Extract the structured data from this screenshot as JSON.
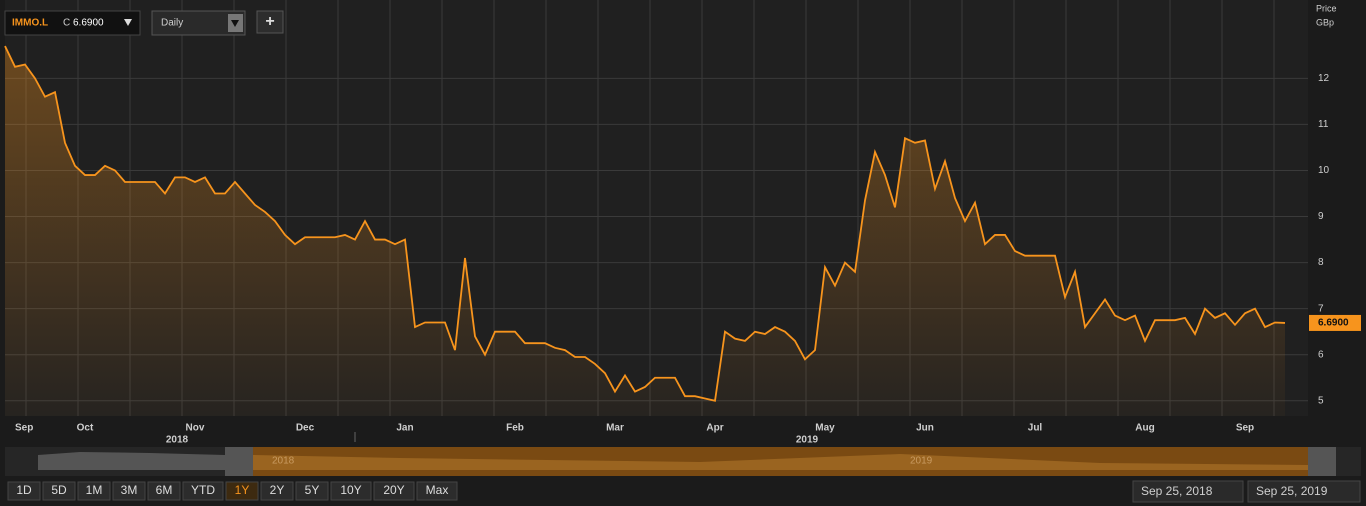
{
  "toolbar": {
    "symbol": "IMMO.L",
    "close_prefix": "C",
    "close": "6.6900",
    "interval": "Daily",
    "add": "+"
  },
  "chart_data": {
    "type": "line",
    "y_axis_label": [
      "Price",
      "GBp"
    ],
    "categories": [
      null,
      "Sep",
      null,
      null,
      null,
      null,
      null,
      null,
      "Oct",
      null,
      null,
      null,
      null,
      null,
      null,
      null,
      null,
      null,
      null,
      "Nov",
      null,
      null,
      null,
      null,
      null,
      null,
      null,
      null,
      null,
      null,
      "Dec",
      null,
      null,
      null,
      null,
      null,
      null,
      null,
      null,
      null,
      "Jan",
      null,
      null,
      null,
      null,
      null,
      null,
      null,
      null,
      null,
      null,
      "Feb",
      null,
      null,
      null,
      null,
      null,
      null,
      null,
      null,
      null,
      "Mar",
      null,
      null,
      null,
      null,
      null,
      null,
      null,
      null,
      null,
      "Apr",
      null,
      null,
      null,
      null,
      null,
      null,
      null,
      null,
      null,
      null,
      "May",
      null,
      null,
      null,
      null,
      null,
      null,
      null,
      null,
      null,
      "Jun",
      null,
      null,
      null,
      null,
      null,
      null,
      null,
      null,
      null,
      null,
      "Jul",
      null,
      null,
      null,
      null,
      null,
      null,
      null,
      null,
      null,
      null,
      "Aug",
      null,
      null,
      null,
      null,
      null,
      null,
      null,
      null,
      null,
      "Sep",
      null,
      null,
      null,
      null
    ],
    "year_labels": [
      "2018",
      "2019"
    ],
    "series": [
      {
        "name": "IMMO.L",
        "color": "#f7941d",
        "values": [
          12.7,
          12.25,
          12.3,
          12.0,
          11.6,
          11.7,
          10.6,
          10.1,
          9.9,
          9.9,
          10.1,
          10.0,
          9.75,
          9.75,
          9.75,
          9.75,
          9.5,
          9.85,
          9.85,
          9.75,
          9.85,
          9.5,
          9.5,
          9.75,
          9.5,
          9.25,
          9.1,
          8.9,
          8.6,
          8.4,
          8.55,
          8.55,
          8.55,
          8.55,
          8.6,
          8.5,
          8.9,
          8.5,
          8.5,
          8.4,
          8.5,
          6.6,
          6.7,
          6.7,
          6.7,
          6.1,
          8.1,
          6.4,
          6.0,
          6.5,
          6.5,
          6.5,
          6.25,
          6.25,
          6.25,
          6.15,
          6.1,
          5.95,
          5.95,
          5.8,
          5.6,
          5.2,
          5.55,
          5.2,
          5.3,
          5.5,
          5.5,
          5.5,
          5.1,
          5.1,
          5.05,
          5.0,
          6.5,
          6.35,
          6.3,
          6.5,
          6.45,
          6.6,
          6.5,
          6.3,
          5.9,
          6.1,
          7.9,
          7.5,
          8.0,
          7.8,
          9.35,
          10.4,
          9.9,
          9.2,
          10.7,
          10.6,
          10.65,
          9.6,
          10.2,
          9.4,
          8.9,
          9.3,
          8.4,
          8.6,
          8.6,
          8.25,
          8.15,
          8.15,
          8.15,
          8.15,
          7.25,
          7.8,
          6.6,
          6.9,
          7.2,
          6.85,
          6.75,
          6.85,
          6.3,
          6.75,
          6.75,
          6.75,
          6.8,
          6.45,
          7.0,
          6.8,
          6.9,
          6.65,
          6.9,
          7.0,
          6.6,
          6.7,
          6.69
        ]
      }
    ],
    "last_value_label": "6.6900",
    "ylim": [
      4.67,
      13.7
    ],
    "yticks": [
      5,
      6,
      7,
      8,
      9,
      10,
      11,
      12
    ],
    "grid": true
  },
  "navigator": {
    "years": [
      "2018",
      "2019"
    ]
  },
  "ranges": [
    "1D",
    "5D",
    "1M",
    "3M",
    "6M",
    "YTD",
    "1Y",
    "2Y",
    "5Y",
    "10Y",
    "20Y",
    "Max"
  ],
  "date_from": "Sep 25, 2018",
  "date_to": "Sep 25, 2019"
}
